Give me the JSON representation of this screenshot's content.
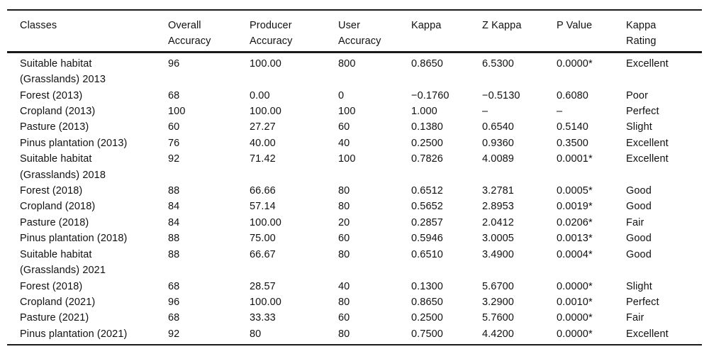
{
  "table": {
    "columns": [
      {
        "label": "Classes"
      },
      {
        "label": "Overall\nAccuracy"
      },
      {
        "label": "Producer\nAccuracy"
      },
      {
        "label": "User\nAccuracy"
      },
      {
        "label": "Kappa"
      },
      {
        "label": "Z Kappa"
      },
      {
        "label": "P Value"
      },
      {
        "label": "Kappa\nRating"
      }
    ],
    "rows": [
      [
        "Suitable habitat (Grasslands) 2013",
        "96",
        "100.00",
        "800",
        "0.8650",
        "6.5300",
        "0.0000*",
        "Excellent"
      ],
      [
        "Forest (2013)",
        "68",
        "0.00",
        "0",
        "−0.1760",
        "−0.5130",
        "0.6080",
        "Poor"
      ],
      [
        "Cropland (2013)",
        "100",
        "100.00",
        "100",
        "1.000",
        "–",
        "–",
        "Perfect"
      ],
      [
        "Pasture (2013)",
        "60",
        "27.27",
        "60",
        "0.1380",
        "0.6540",
        "0.5140",
        "Slight"
      ],
      [
        "Pinus plantation (2013)",
        "76",
        "40.00",
        "40",
        "0.2500",
        "0.9360",
        "0.3500",
        "Excellent"
      ],
      [
        "Suitable habitat (Grasslands) 2018",
        "92",
        "71.42",
        "100",
        "0.7826",
        "4.0089",
        "0.0001*",
        "Excellent"
      ],
      [
        "Forest (2018)",
        "88",
        "66.66",
        "80",
        "0.6512",
        "3.2781",
        "0.0005*",
        "Good"
      ],
      [
        "Cropland (2018)",
        "84",
        "57.14",
        "80",
        "0.5652",
        "2.8953",
        "0.0019*",
        "Good"
      ],
      [
        "Pasture (2018)",
        "84",
        "100.00",
        "20",
        "0.2857",
        "2.0412",
        "0.0206*",
        "Fair"
      ],
      [
        "Pinus plantation (2018)",
        "88",
        "75.00",
        "60",
        "0.5946",
        "3.0005",
        "0.0013*",
        "Good"
      ],
      [
        "Suitable habitat (Grasslands) 2021",
        "88",
        "66.67",
        "80",
        "0.6510",
        "3.4900",
        "0.0004*",
        "Good"
      ],
      [
        "Forest (2018)",
        "68",
        "28.57",
        "40",
        "0.1300",
        "5.6700",
        "0.0000*",
        "Slight"
      ],
      [
        "Cropland (2021)",
        "96",
        "100.00",
        "80",
        "0.8650",
        "3.2900",
        "0.0010*",
        "Perfect"
      ],
      [
        "Pasture (2021)",
        "68",
        "33.33",
        "60",
        "0.2500",
        "5.7600",
        "0.0000*",
        "Fair"
      ],
      [
        "Pinus plantation (2021)",
        "92",
        "80",
        "80",
        "0.7500",
        "4.4200",
        "0.0000*",
        "Excellent"
      ]
    ]
  }
}
